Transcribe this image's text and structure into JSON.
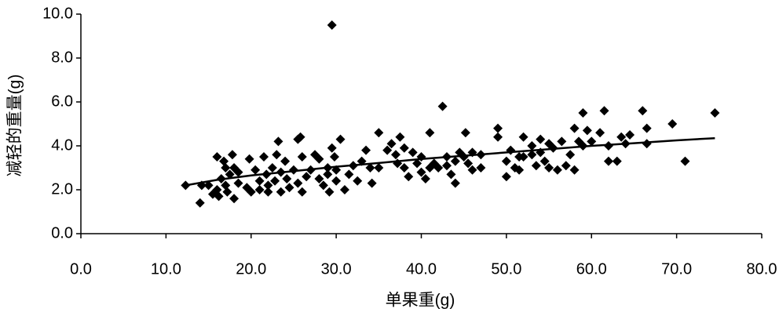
{
  "chart_data": {
    "type": "scatter",
    "x_label": "单果重(g)",
    "y_label": "减轻的重量(g)",
    "xlim": [
      0,
      80
    ],
    "ylim": [
      0,
      10
    ],
    "xticks": [
      {
        "value": 0,
        "label": "0.0"
      },
      {
        "value": 10,
        "label": "10.0"
      },
      {
        "value": 20,
        "label": "20.0"
      },
      {
        "value": 30,
        "label": "30.0"
      },
      {
        "value": 40,
        "label": "40.0"
      },
      {
        "value": 50,
        "label": "50.0"
      },
      {
        "value": 60,
        "label": "60.0"
      },
      {
        "value": 70,
        "label": "70.0"
      },
      {
        "value": 80,
        "label": "80.0"
      }
    ],
    "yticks": [
      {
        "value": 0,
        "label": "0.0"
      },
      {
        "value": 2,
        "label": "2.0"
      },
      {
        "value": 4,
        "label": "4.0"
      },
      {
        "value": 6,
        "label": "6.0"
      },
      {
        "value": 8,
        "label": "8.0"
      },
      {
        "value": 10,
        "label": "10.0"
      }
    ],
    "color": "#000000",
    "x": [
      12.3,
      14,
      14.2,
      15,
      15.5,
      16,
      16,
      16.2,
      16.5,
      16.8,
      17,
      17,
      17.2,
      17.5,
      17.8,
      18,
      18,
      18.5,
      18.5,
      19.5,
      19.8,
      20,
      20.5,
      21,
      21,
      21.5,
      21.8,
      22,
      22,
      22.5,
      22.8,
      23,
      23.2,
      23.5,
      23.5,
      24,
      24.2,
      24.5,
      25,
      25.5,
      25.8,
      25.5,
      26,
      26,
      26.5,
      27,
      27.5,
      28,
      28,
      28.5,
      29,
      29,
      29.2,
      29.5,
      29.5,
      29.8,
      30,
      30,
      30.5,
      31,
      31.5,
      32,
      32.5,
      33,
      33.5,
      34,
      34.2,
      35,
      35,
      36,
      36.5,
      37,
      37.2,
      37.5,
      38,
      38,
      38.5,
      39,
      39.5,
      40,
      40,
      40.5,
      41,
      41,
      41.5,
      42,
      42.5,
      43,
      43,
      43.5,
      44,
      44,
      44.5,
      45,
      45.2,
      45.5,
      46,
      46,
      47,
      47,
      49,
      49,
      50,
      50,
      50.5,
      51,
      51.5,
      51.5,
      52,
      52,
      53,
      53,
      53.5,
      54,
      54,
      54.5,
      55,
      55,
      55.5,
      56,
      56.5,
      57,
      57.5,
      58,
      58,
      58.5,
      59,
      59,
      59.5,
      60,
      61,
      61.5,
      62,
      62,
      63,
      63.5,
      64,
      64.5,
      66,
      66.5,
      66.5,
      69.5,
      71,
      74.5
    ],
    "values": [
      2.2,
      1.4,
      2.2,
      2.2,
      1.8,
      3.5,
      2.0,
      1.7,
      2.5,
      3.3,
      3.0,
      2.2,
      1.9,
      2.7,
      3.6,
      3.0,
      1.6,
      2.3,
      2.8,
      2.1,
      3.4,
      1.9,
      2.9,
      2.4,
      2.0,
      3.5,
      2.7,
      2.2,
      1.9,
      3.0,
      2.4,
      3.6,
      4.2,
      2.8,
      1.9,
      3.3,
      2.5,
      2.1,
      2.9,
      4.3,
      4.4,
      2.3,
      3.5,
      1.9,
      2.6,
      2.9,
      3.6,
      3.4,
      2.5,
      2.2,
      3.0,
      2.7,
      1.9,
      9.5,
      3.9,
      3.5,
      2.4,
      2.9,
      4.3,
      2.0,
      2.7,
      3.1,
      2.4,
      3.3,
      3.8,
      3.0,
      2.3,
      4.6,
      3.0,
      3.8,
      4.1,
      3.6,
      3.2,
      4.4,
      3.9,
      3.0,
      2.6,
      3.7,
      3.2,
      3.5,
      2.8,
      2.5,
      3.0,
      4.6,
      3.2,
      3.0,
      5.8,
      3.5,
      3.1,
      2.7,
      2.3,
      3.3,
      3.7,
      3.5,
      4.6,
      3.2,
      3.7,
      2.9,
      3.0,
      3.6,
      4.8,
      4.4,
      2.6,
      3.3,
      3.8,
      3.0,
      3.5,
      2.9,
      4.4,
      3.5,
      4.0,
      3.6,
      3.1,
      4.3,
      3.7,
      3.3,
      4.1,
      3.0,
      3.9,
      2.9,
      4.2,
      3.1,
      3.6,
      2.9,
      4.8,
      4.2,
      5.5,
      4.0,
      4.7,
      4.2,
      4.6,
      5.6,
      3.3,
      4.0,
      3.3,
      4.4,
      4.1,
      4.5,
      5.6,
      4.8,
      4.1,
      5.0,
      3.3,
      5.5
    ],
    "trend": {
      "x": [
        12.3,
        16,
        20,
        25,
        30,
        35,
        40,
        45,
        50,
        55,
        60,
        65,
        70,
        74.5
      ],
      "y": [
        2.2,
        2.45,
        2.65,
        2.85,
        3.05,
        3.22,
        3.4,
        3.55,
        3.7,
        3.85,
        4.0,
        4.12,
        4.25,
        4.35
      ]
    }
  }
}
